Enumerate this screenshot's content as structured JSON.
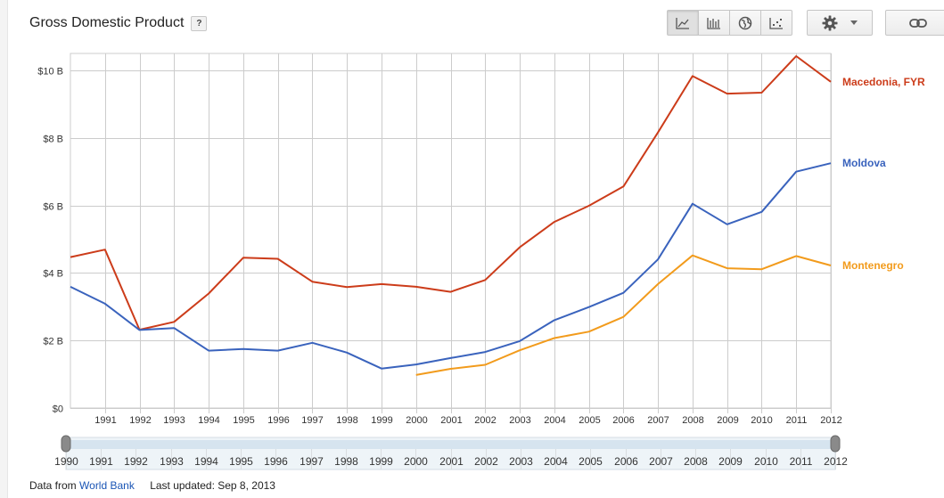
{
  "header": {
    "title": "Gross Domestic Product",
    "help_label": "?"
  },
  "toolbar": {
    "views": [
      {
        "name": "line-chart-icon",
        "active": true
      },
      {
        "name": "bar-chart-icon",
        "active": false
      },
      {
        "name": "map-icon",
        "active": false
      },
      {
        "name": "scatter-icon",
        "active": false
      }
    ]
  },
  "footer": {
    "source_prefix": "Data from",
    "source_link": "World Bank",
    "updated": "Last updated: Sep 8, 2013"
  },
  "colors": {
    "macedonia": "#cc3c1a",
    "moldova": "#3a63bd",
    "montenegro": "#f29b1c",
    "grid": "#cccccc"
  },
  "chart_data": {
    "type": "line",
    "x": [
      1990,
      1991,
      1992,
      1993,
      1994,
      1995,
      1996,
      1997,
      1998,
      1999,
      2000,
      2001,
      2002,
      2003,
      2004,
      2005,
      2006,
      2007,
      2008,
      2009,
      2010,
      2011,
      2012
    ],
    "x_tick_labels": [
      "1991",
      "1992",
      "1993",
      "1994",
      "1995",
      "1996",
      "1997",
      "1998",
      "1999",
      "2000",
      "2001",
      "2002",
      "2003",
      "2004",
      "2005",
      "2006",
      "2007",
      "2008",
      "2009",
      "2010",
      "2011",
      "2012"
    ],
    "y_ticks": [
      0,
      2,
      4,
      6,
      8,
      10
    ],
    "y_tick_labels": [
      "$0",
      "$2 B",
      "$4 B",
      "$6 B",
      "$8 B",
      "$10 B"
    ],
    "ylim": [
      0,
      10.5
    ],
    "xlim": [
      1990,
      2012
    ],
    "grid": true,
    "legend_placement": "right",
    "series": [
      {
        "name": "Macedonia, FYR",
        "color": "#cc3c1a",
        "values": [
          4.47,
          4.69,
          2.32,
          2.55,
          3.39,
          4.45,
          4.42,
          3.74,
          3.58,
          3.67,
          3.59,
          3.44,
          3.79,
          4.76,
          5.51,
          5.99,
          6.56,
          8.16,
          9.83,
          9.31,
          9.34,
          10.42,
          9.66
        ]
      },
      {
        "name": "Moldova",
        "color": "#3a63bd",
        "values": [
          3.59,
          3.09,
          2.31,
          2.37,
          1.7,
          1.75,
          1.7,
          1.93,
          1.64,
          1.17,
          1.29,
          1.48,
          1.66,
          1.98,
          2.6,
          2.99,
          3.41,
          4.4,
          6.05,
          5.44,
          5.81,
          7.0,
          7.25
        ]
      },
      {
        "name": "Montenegro",
        "color": "#f29b1c",
        "values": [
          null,
          null,
          null,
          null,
          null,
          null,
          null,
          null,
          null,
          null,
          0.98,
          1.16,
          1.28,
          1.71,
          2.07,
          2.26,
          2.7,
          3.67,
          4.52,
          4.14,
          4.11,
          4.5,
          4.22
        ]
      }
    ],
    "timeline": {
      "labels": [
        "1990",
        "1991",
        "1992",
        "1993",
        "1994",
        "1995",
        "1996",
        "1997",
        "1998",
        "1999",
        "2000",
        "2001",
        "2002",
        "2003",
        "2004",
        "2005",
        "2006",
        "2007",
        "2008",
        "2009",
        "2010",
        "2011",
        "2012"
      ],
      "range": [
        1990,
        2012
      ]
    }
  }
}
